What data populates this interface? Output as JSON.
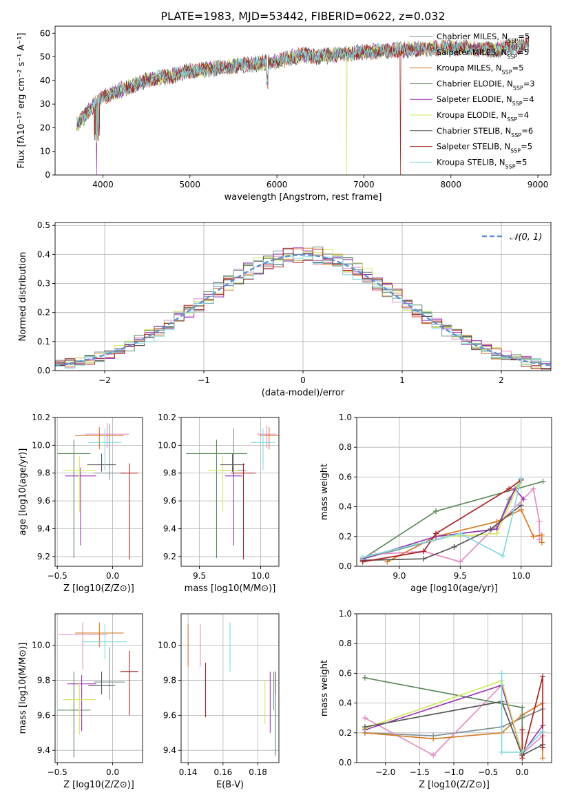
{
  "page": {
    "title": "PLATE=1983, MJD=53442, FIBERID=0622, z=0.032"
  },
  "series": [
    {
      "name": "Chabrier MILES",
      "nssp": "5",
      "color": "#7a8f95"
    },
    {
      "name": "Salpeter MILES",
      "nssp": "5",
      "color": "#e48cc3"
    },
    {
      "name": "Kroupa MILES",
      "nssp": "5",
      "color": "#d87a22"
    },
    {
      "name": "Chabrier ELODIE",
      "nssp": "3",
      "color": "#5a8a5a"
    },
    {
      "name": "Salpeter ELODIE",
      "nssp": "4",
      "color": "#9b35b5"
    },
    {
      "name": "Kroupa ELODIE",
      "nssp": "4",
      "color": "#d4e85a"
    },
    {
      "name": "Chabrier STELIB",
      "nssp": "6",
      "color": "#555555"
    },
    {
      "name": "Salpeter STELIB",
      "nssp": "5",
      "color": "#b01e1e"
    },
    {
      "name": "Kroupa STELIB",
      "nssp": "5",
      "color": "#7fd9e0"
    }
  ],
  "chart_data": [
    {
      "id": "spectrum",
      "type": "line",
      "xlabel": "wavelength [Angstrom, rest frame]",
      "ylabel": "Flux [fλ10⁻¹⁷ erg cm⁻² s⁻¹ A⁻¹]",
      "xlim": [
        3450,
        9150
      ],
      "ylim": [
        0,
        63
      ],
      "xticks": [
        4000,
        5000,
        6000,
        7000,
        8000,
        9000
      ],
      "yticks": [
        0,
        10,
        20,
        30,
        40,
        50,
        60
      ],
      "grid": false,
      "legend": "right",
      "continuum": [
        [
          3700,
          21
        ],
        [
          3900,
          30
        ],
        [
          4000,
          33
        ],
        [
          4200,
          36
        ],
        [
          4500,
          40
        ],
        [
          4800,
          42
        ],
        [
          5000,
          44
        ],
        [
          5500,
          46
        ],
        [
          6000,
          48
        ],
        [
          6300,
          51
        ],
        [
          6500,
          50
        ],
        [
          6700,
          51
        ],
        [
          7000,
          52
        ],
        [
          7500,
          53
        ],
        [
          8000,
          54
        ],
        [
          8500,
          53
        ],
        [
          8900,
          55
        ]
      ]
    },
    {
      "id": "residuals",
      "type": "step",
      "xlabel": "(data-model)/error",
      "ylabel": "Normed distribution",
      "xlim": [
        -2.5,
        2.5
      ],
      "ylim": [
        0,
        0.51
      ],
      "xticks": [
        -2,
        -1,
        0,
        1,
        2
      ],
      "yticks": [
        0.0,
        0.1,
        0.2,
        0.3,
        0.4,
        0.5
      ],
      "grid": true,
      "legend": "top-right",
      "legend_label": "𝒩(0, 1)",
      "reference": "normal(0,1)"
    },
    {
      "id": "age_vs_Z",
      "type": "errorbar",
      "xlabel": "Z [log10(Z/Z⊙)]",
      "ylabel": "age  [log10(age/yr)]",
      "xlim": [
        -0.52,
        0.27
      ],
      "ylim": [
        9.13,
        10.2
      ],
      "xticks": [
        -0.5,
        0.0
      ],
      "yticks": [
        9.2,
        9.4,
        9.6,
        9.8,
        10.0,
        10.2
      ],
      "grid": true,
      "points": [
        {
          "s": 0,
          "x": -0.03,
          "y": 9.8,
          "ex": 0.14,
          "ey": [
            0.05,
            0.35
          ]
        },
        {
          "s": 1,
          "x": -0.05,
          "y": 10.08,
          "ex": 0.2,
          "ey": [
            0.1,
            0.08
          ]
        },
        {
          "s": 2,
          "x": -0.12,
          "y": 10.07,
          "ex": 0.22,
          "ey": [
            0.1,
            0.06
          ]
        },
        {
          "s": 3,
          "x": -0.35,
          "y": 9.94,
          "ex": 0.15,
          "ey": [
            0.75,
            0.1
          ]
        },
        {
          "s": 4,
          "x": -0.29,
          "y": 9.78,
          "ex": 0.14,
          "ey": [
            0.5,
            0.06
          ]
        },
        {
          "s": 5,
          "x": -0.3,
          "y": 9.82,
          "ex": 0.15,
          "ey": [
            0.3,
            0.1
          ]
        },
        {
          "s": 6,
          "x": -0.1,
          "y": 9.86,
          "ex": 0.13,
          "ey": [
            0.05,
            0.08
          ]
        },
        {
          "s": 7,
          "x": 0.15,
          "y": 9.8,
          "ex": 0.08,
          "ey": [
            0.62,
            0.07
          ]
        },
        {
          "s": 8,
          "x": -0.07,
          "y": 10.02,
          "ex": 0.15,
          "ey": [
            0.2,
            0.1
          ]
        }
      ]
    },
    {
      "id": "age_vs_mass",
      "type": "errorbar",
      "xlabel": "mass [log10(M/M⊙)]",
      "ylabel": "",
      "xlim": [
        9.35,
        10.15
      ],
      "ylim": [
        9.13,
        10.2
      ],
      "xticks": [
        9.5,
        10.0
      ],
      "yticks": [
        9.2,
        9.4,
        9.6,
        9.8,
        10.0,
        10.2
      ],
      "grid": true,
      "points": [
        {
          "s": 0,
          "x": 9.78,
          "y": 9.82,
          "ex": 0.1,
          "ey": [
            0.05,
            0.3
          ]
        },
        {
          "s": 1,
          "x": 10.05,
          "y": 10.08,
          "ex": 0.08,
          "ey": [
            0.1,
            0.06
          ]
        },
        {
          "s": 2,
          "x": 10.07,
          "y": 10.07,
          "ex": 0.08,
          "ey": [
            0.1,
            0.06
          ]
        },
        {
          "s": 3,
          "x": 9.64,
          "y": 9.94,
          "ex": 0.25,
          "ey": [
            0.75,
            0.1
          ]
        },
        {
          "s": 4,
          "x": 9.78,
          "y": 9.78,
          "ex": 0.07,
          "ey": [
            0.5,
            0.06
          ]
        },
        {
          "s": 5,
          "x": 9.69,
          "y": 9.82,
          "ex": 0.12,
          "ey": [
            0.3,
            0.1
          ]
        },
        {
          "s": 6,
          "x": 9.77,
          "y": 9.86,
          "ex": 0.1,
          "ey": [
            0.05,
            0.08
          ]
        },
        {
          "s": 7,
          "x": 9.86,
          "y": 9.8,
          "ex": 0.1,
          "ey": [
            0.62,
            0.07
          ]
        },
        {
          "s": 8,
          "x": 10.02,
          "y": 10.02,
          "ex": 0.1,
          "ey": [
            0.2,
            0.1
          ]
        }
      ]
    },
    {
      "id": "weight_vs_age",
      "type": "line",
      "xlabel": "age  [log10(age/yr)]",
      "ylabel": "mass weight",
      "xlim": [
        8.65,
        10.25
      ],
      "ylim": [
        0,
        1
      ],
      "xticks": [
        9.0,
        9.5,
        10.0
      ],
      "yticks": [
        0.0,
        0.2,
        0.4,
        0.6,
        0.8,
        1.0
      ],
      "grid": true,
      "lines": [
        {
          "s": 0,
          "pts": [
            [
              8.7,
              0.05
            ],
            [
              9.5,
              0.22
            ],
            [
              9.8,
              0.25
            ],
            [
              9.9,
              0.45
            ],
            [
              10.0,
              0.58
            ]
          ]
        },
        {
          "s": 1,
          "pts": [
            [
              8.8,
              0.08
            ],
            [
              9.2,
              0.1
            ],
            [
              9.5,
              0.03
            ],
            [
              10.1,
              0.52
            ],
            [
              10.15,
              0.3
            ],
            [
              10.15,
              0.18
            ]
          ]
        },
        {
          "s": 2,
          "pts": [
            [
              8.9,
              0.03
            ],
            [
              9.3,
              0.2
            ],
            [
              9.8,
              0.3
            ],
            [
              10.0,
              0.38
            ],
            [
              10.1,
              0.2
            ],
            [
              10.17,
              0.21
            ],
            [
              10.17,
              0.16
            ]
          ]
        },
        {
          "s": 3,
          "pts": [
            [
              8.7,
              0.05
            ],
            [
              9.3,
              0.37
            ],
            [
              10.18,
              0.57
            ]
          ]
        },
        {
          "s": 4,
          "pts": [
            [
              8.7,
              0.05
            ],
            [
              9.3,
              0.2
            ],
            [
              9.8,
              0.25
            ],
            [
              9.95,
              0.52
            ],
            [
              10.02,
              0.45
            ]
          ]
        },
        {
          "s": 5,
          "pts": [
            [
              8.7,
              0.06
            ],
            [
              9.4,
              0.2
            ],
            [
              9.8,
              0.22
            ],
            [
              9.98,
              0.55
            ]
          ]
        },
        {
          "s": 6,
          "pts": [
            [
              8.7,
              0.04
            ],
            [
              9.2,
              0.05
            ],
            [
              9.45,
              0.13
            ],
            [
              9.75,
              0.25
            ],
            [
              10.0,
              0.41
            ]
          ]
        },
        {
          "s": 7,
          "pts": [
            [
              8.7,
              0.03
            ],
            [
              9.2,
              0.1
            ],
            [
              9.3,
              0.22
            ],
            [
              9.9,
              0.52
            ],
            [
              10.0,
              0.58
            ]
          ]
        },
        {
          "s": 8,
          "pts": [
            [
              8.7,
              0.06
            ],
            [
              9.5,
              0.22
            ],
            [
              9.85,
              0.07
            ],
            [
              10.0,
              0.59
            ]
          ]
        }
      ]
    },
    {
      "id": "mass_vs_Z",
      "type": "errorbar",
      "xlabel": "Z [log10(Z/Z⊙)]",
      "ylabel": "mass [log10(M/M⊙)]",
      "xlim": [
        -0.52,
        0.27
      ],
      "ylim": [
        9.33,
        10.18
      ],
      "xticks": [
        -0.5,
        0.0
      ],
      "yticks": [
        9.4,
        9.6,
        9.8,
        10.0
      ],
      "grid": true,
      "points": [
        {
          "s": 0,
          "x": -0.03,
          "y": 9.79,
          "ex": 0.14,
          "ey": [
            0.1,
            0.2
          ]
        },
        {
          "s": 1,
          "x": -0.27,
          "y": 10.06,
          "ex": 0.22,
          "ey": [
            0.2,
            0.07
          ]
        },
        {
          "s": 2,
          "x": -0.12,
          "y": 10.07,
          "ex": 0.22,
          "ey": [
            0.08,
            0.06
          ]
        },
        {
          "s": 3,
          "x": -0.35,
          "y": 9.63,
          "ex": 0.15,
          "ey": [
            0.27,
            0.22
          ]
        },
        {
          "s": 4,
          "x": -0.28,
          "y": 9.78,
          "ex": 0.13,
          "ey": [
            0.27,
            0.05
          ]
        },
        {
          "s": 5,
          "x": -0.3,
          "y": 9.69,
          "ex": 0.15,
          "ey": [
            0.2,
            0.1
          ]
        },
        {
          "s": 6,
          "x": -0.1,
          "y": 9.77,
          "ex": 0.12,
          "ey": [
            0.05,
            0.08
          ]
        },
        {
          "s": 7,
          "x": 0.15,
          "y": 9.85,
          "ex": 0.08,
          "ey": [
            0.25,
            0.12
          ]
        },
        {
          "s": 8,
          "x": -0.07,
          "y": 10.02,
          "ex": 0.2,
          "ey": [
            0.1,
            0.1
          ]
        }
      ]
    },
    {
      "id": "mass_vs_EBV",
      "type": "errorbar",
      "xlabel": "E(B-V)",
      "ylabel": "",
      "xlim": [
        0.136,
        0.192
      ],
      "ylim": [
        9.33,
        10.18
      ],
      "xticks": [
        0.14,
        0.16,
        0.18
      ],
      "yticks": [
        9.4,
        9.6,
        9.8,
        10.0
      ],
      "grid": true,
      "points": [
        {
          "s": 0,
          "x": 0.189,
          "y": 9.78,
          "ey": [
            0.15,
            0.07
          ]
        },
        {
          "s": 1,
          "x": 0.147,
          "y": 10.0,
          "ey": [
            0.12,
            0.12
          ]
        },
        {
          "s": 2,
          "x": 0.14,
          "y": 10.0,
          "ey": [
            0.12,
            0.12
          ]
        },
        {
          "s": 3,
          "x": 0.19,
          "y": 9.62,
          "ey": [
            0.25,
            0.23
          ]
        },
        {
          "s": 4,
          "x": 0.187,
          "y": 9.7,
          "ey": [
            0.2,
            0.15
          ]
        },
        {
          "s": 5,
          "x": 0.184,
          "y": 9.68,
          "ey": [
            0.13,
            0.12
          ]
        },
        {
          "s": 6,
          "x": 0.19,
          "y": 9.78,
          "ey": [
            0.06,
            0.07
          ]
        },
        {
          "s": 7,
          "x": 0.15,
          "y": 9.75,
          "ey": [
            0.16,
            0.15
          ]
        },
        {
          "s": 8,
          "x": 0.164,
          "y": 9.98,
          "ey": [
            0.13,
            0.15
          ]
        }
      ]
    },
    {
      "id": "weight_vs_Z",
      "type": "line",
      "xlabel": "Z [log10(Z/Z⊙)]",
      "ylabel": "mass weight",
      "xlim": [
        -2.42,
        0.43
      ],
      "ylim": [
        0,
        1
      ],
      "xticks": [
        -2.0,
        -1.5,
        -1.0,
        -0.5,
        0.0
      ],
      "yticks": [
        0.0,
        0.2,
        0.4,
        0.6,
        0.8,
        1.0
      ],
      "grid": true,
      "lines": [
        {
          "s": 0,
          "pts": [
            [
              -2.3,
              0.2
            ],
            [
              -1.3,
              0.18
            ],
            [
              -0.3,
              0.24
            ],
            [
              0.0,
              0.3
            ],
            [
              0.3,
              0.36
            ]
          ]
        },
        {
          "s": 1,
          "pts": [
            [
              -2.3,
              0.3
            ],
            [
              -1.3,
              0.05
            ],
            [
              -0.3,
              0.52
            ],
            [
              0.0,
              0.06
            ],
            [
              0.3,
              0.18
            ]
          ]
        },
        {
          "s": 2,
          "pts": [
            [
              -2.3,
              0.2
            ],
            [
              -1.3,
              0.16
            ],
            [
              -0.3,
              0.2
            ],
            [
              0.0,
              0.32
            ],
            [
              0.3,
              0.4
            ],
            [
              0.3,
              0.03
            ]
          ]
        },
        {
          "s": 3,
          "pts": [
            [
              -2.3,
              0.57
            ],
            [
              0.0,
              0.37
            ],
            [
              0.0,
              0.06
            ]
          ]
        },
        {
          "s": 4,
          "pts": [
            [
              -2.3,
              0.22
            ],
            [
              -0.3,
              0.52
            ],
            [
              0.0,
              0.06
            ],
            [
              0.3,
              0.25
            ]
          ]
        },
        {
          "s": 5,
          "pts": [
            [
              -2.3,
              0.23
            ],
            [
              -0.3,
              0.55
            ],
            [
              0.0,
              0.06
            ]
          ]
        },
        {
          "s": 6,
          "pts": [
            [
              -2.3,
              0.24
            ],
            [
              -0.3,
              0.41
            ],
            [
              0.0,
              0.05
            ],
            [
              0.3,
              0.12
            ]
          ]
        },
        {
          "s": 7,
          "pts": [
            [
              0.0,
              0.22
            ],
            [
              0.0,
              0.03
            ],
            [
              0.3,
              0.58
            ],
            [
              0.3,
              0.1
            ]
          ]
        },
        {
          "s": 8,
          "pts": [
            [
              -0.3,
              0.6
            ],
            [
              -0.3,
              0.07
            ],
            [
              0.0,
              0.07
            ],
            [
              0.3,
              0.21
            ]
          ]
        }
      ]
    }
  ]
}
